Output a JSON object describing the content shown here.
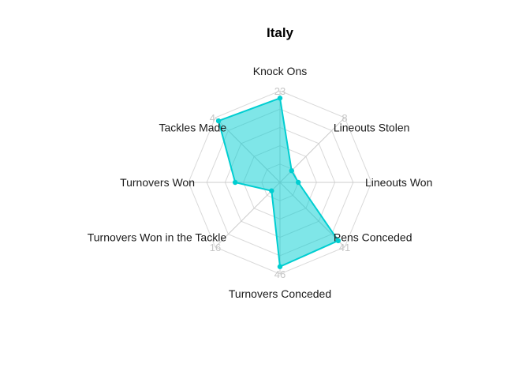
{
  "chart_data": {
    "type": "radar",
    "title": "Italy",
    "axes": [
      {
        "label": "Knock Ons",
        "max_label": "23"
      },
      {
        "label": "Lineouts Stolen",
        "max_label": "8"
      },
      {
        "label": "Lineouts Won",
        "max_label": ""
      },
      {
        "label": "Pens Conceded",
        "max_label": "41"
      },
      {
        "label": "Turnovers Conceded",
        "max_label": "46"
      },
      {
        "label": "Turnovers Won in the Tackle",
        "max_label": "16"
      },
      {
        "label": "Turnovers Won",
        "max_label": ""
      },
      {
        "label": "Tackles Made",
        "max_label": "4.."
      }
    ],
    "series": [
      {
        "values": [
          0.92,
          0.18,
          0.2,
          0.9,
          0.92,
          0.13,
          0.49,
          0.95
        ],
        "color": "#00CED1"
      }
    ],
    "grid_levels": 5,
    "range": [
      0,
      1
    ]
  }
}
